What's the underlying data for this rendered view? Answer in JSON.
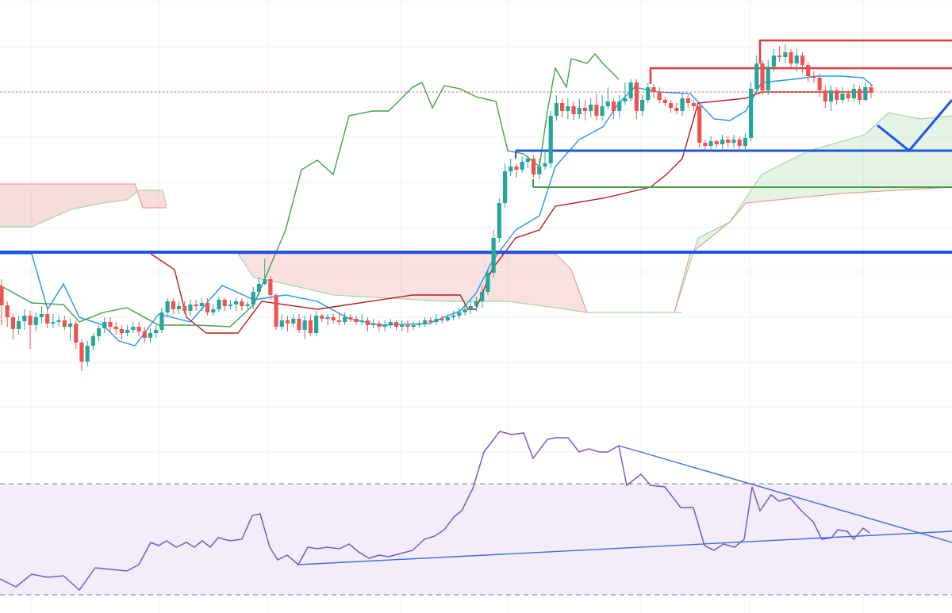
{
  "chart_data": [
    {
      "type": "candlestick",
      "panel": "price",
      "colors": {
        "up": "#26a69a",
        "down": "#ef5350",
        "conversion_line": "#2196f3",
        "base_line": "#b71c1c",
        "lagging_span": "#43a047",
        "cloud_bull": "#a5d6a7",
        "cloud_bear": "#ef9a9a",
        "horizontal_blue": "#1e55e6",
        "horizontal_green": "#43a047",
        "box_red": "#e53935",
        "price_line": "#ef5350"
      },
      "grid": true,
      "candles": [
        [
          361,
          385,
          352,
          410
        ],
        [
          385,
          400,
          380,
          412
        ],
        [
          400,
          415,
          396,
          428
        ],
        [
          415,
          405,
          398,
          422
        ],
        [
          405,
          398,
          390,
          416
        ],
        [
          398,
          410,
          392,
          440
        ],
        [
          410,
          400,
          394,
          418
        ],
        [
          400,
          396,
          386,
          408
        ],
        [
          396,
          408,
          390,
          414
        ],
        [
          408,
          406,
          396,
          414
        ],
        [
          406,
          404,
          398,
          412
        ],
        [
          404,
          412,
          398,
          416
        ],
        [
          412,
          408,
          402,
          430
        ],
        [
          408,
          432,
          404,
          440
        ],
        [
          432,
          456,
          428,
          468
        ],
        [
          456,
          436,
          430,
          462
        ],
        [
          436,
          424,
          420,
          442
        ],
        [
          424,
          414,
          410,
          430
        ],
        [
          414,
          406,
          400,
          420
        ],
        [
          406,
          412,
          400,
          418
        ],
        [
          412,
          415,
          406,
          422
        ],
        [
          415,
          420,
          410,
          428
        ],
        [
          420,
          416,
          410,
          424
        ],
        [
          416,
          412,
          406,
          420
        ],
        [
          412,
          418,
          406,
          424
        ],
        [
          418,
          426,
          412,
          432
        ],
        [
          426,
          420,
          414,
          432
        ],
        [
          420,
          416,
          410,
          426
        ],
        [
          416,
          394,
          388,
          420
        ],
        [
          394,
          380,
          376,
          400
        ],
        [
          380,
          390,
          376,
          396
        ],
        [
          390,
          386,
          380,
          396
        ],
        [
          386,
          392,
          380,
          396
        ],
        [
          392,
          384,
          378,
          398
        ],
        [
          384,
          386,
          378,
          392
        ],
        [
          386,
          382,
          376,
          392
        ],
        [
          382,
          394,
          376,
          398
        ],
        [
          394,
          390,
          384,
          398
        ],
        [
          390,
          378,
          374,
          394
        ],
        [
          378,
          386,
          376,
          392
        ],
        [
          386,
          384,
          378,
          390
        ],
        [
          384,
          380,
          376,
          392
        ],
        [
          380,
          386,
          376,
          392
        ],
        [
          386,
          384,
          380,
          390
        ],
        [
          384,
          368,
          362,
          390
        ],
        [
          368,
          358,
          350,
          372
        ],
        [
          358,
          352,
          326,
          360
        ],
        [
          352,
          372,
          348,
          378
        ],
        [
          372,
          412,
          370,
          416
        ],
        [
          412,
          404,
          396,
          416
        ],
        [
          404,
          408,
          398,
          418
        ],
        [
          408,
          402,
          396,
          412
        ],
        [
          402,
          416,
          396,
          420
        ],
        [
          416,
          404,
          398,
          428
        ],
        [
          404,
          420,
          396,
          424
        ],
        [
          420,
          398,
          392,
          424
        ],
        [
          398,
          402,
          396,
          406
        ],
        [
          402,
          400,
          396,
          410
        ],
        [
          400,
          404,
          396,
          408
        ],
        [
          404,
          406,
          396,
          410
        ],
        [
          406,
          400,
          394,
          410
        ],
        [
          400,
          402,
          396,
          406
        ],
        [
          402,
          406,
          398,
          410
        ],
        [
          406,
          404,
          396,
          410
        ],
        [
          404,
          410,
          400,
          418
        ],
        [
          410,
          408,
          402,
          414
        ],
        [
          408,
          412,
          404,
          418
        ],
        [
          412,
          410,
          404,
          418
        ],
        [
          410,
          406,
          402,
          414
        ],
        [
          406,
          412,
          404,
          416
        ],
        [
          412,
          410,
          404,
          418
        ],
        [
          410,
          412,
          404,
          420
        ],
        [
          412,
          410,
          406,
          416
        ],
        [
          410,
          408,
          404,
          414
        ],
        [
          408,
          404,
          400,
          412
        ],
        [
          404,
          406,
          400,
          410
        ],
        [
          406,
          402,
          396,
          410
        ],
        [
          402,
          404,
          398,
          408
        ],
        [
          404,
          400,
          396,
          406
        ],
        [
          400,
          398,
          392,
          404
        ],
        [
          398,
          394,
          388,
          402
        ],
        [
          394,
          390,
          384,
          398
        ],
        [
          390,
          386,
          380,
          396
        ],
        [
          386,
          380,
          374,
          392
        ],
        [
          380,
          368,
          360,
          388
        ],
        [
          368,
          344,
          340,
          372
        ],
        [
          344,
          300,
          290,
          350
        ],
        [
          300,
          256,
          250,
          306
        ],
        [
          256,
          216,
          206,
          262
        ],
        [
          216,
          210,
          200,
          222
        ],
        [
          210,
          214,
          206,
          224
        ],
        [
          214,
          204,
          198,
          218
        ],
        [
          204,
          200,
          196,
          212
        ],
        [
          200,
          220,
          196,
          224
        ],
        [
          220,
          210,
          200,
          226
        ],
        [
          210,
          206,
          190,
          214
        ],
        [
          206,
          146,
          140,
          212
        ],
        [
          146,
          130,
          120,
          152
        ],
        [
          130,
          140,
          124,
          148
        ],
        [
          140,
          134,
          124,
          150
        ],
        [
          134,
          144,
          128,
          152
        ],
        [
          144,
          136,
          124,
          150
        ],
        [
          136,
          140,
          126,
          152
        ],
        [
          140,
          132,
          124,
          148
        ],
        [
          132,
          146,
          118,
          152
        ],
        [
          146,
          134,
          120,
          152
        ],
        [
          134,
          128,
          110,
          138
        ],
        [
          128,
          140,
          124,
          150
        ],
        [
          140,
          128,
          120,
          148
        ],
        [
          128,
          124,
          104,
          132
        ],
        [
          124,
          104,
          100,
          128
        ],
        [
          104,
          140,
          100,
          150
        ],
        [
          140,
          126,
          120,
          146
        ],
        [
          126,
          110,
          104,
          130
        ],
        [
          110,
          116,
          106,
          124
        ],
        [
          116,
          126,
          110,
          130
        ],
        [
          126,
          130,
          122,
          134
        ],
        [
          130,
          136,
          126,
          142
        ],
        [
          136,
          140,
          130,
          144
        ],
        [
          140,
          124,
          118,
          146
        ],
        [
          124,
          130,
          120,
          136
        ],
        [
          130,
          134,
          126,
          140
        ],
        [
          134,
          180,
          130,
          186
        ],
        [
          180,
          184,
          176,
          190
        ],
        [
          184,
          178,
          172,
          188
        ],
        [
          178,
          182,
          176,
          186
        ],
        [
          182,
          176,
          170,
          188
        ],
        [
          176,
          180,
          172,
          186
        ],
        [
          180,
          176,
          170,
          186
        ],
        [
          176,
          184,
          172,
          190
        ],
        [
          184,
          174,
          168,
          188
        ],
        [
          174,
          112,
          104,
          178
        ],
        [
          112,
          80,
          70,
          116
        ],
        [
          80,
          114,
          76,
          120
        ],
        [
          114,
          84,
          76,
          120
        ],
        [
          84,
          70,
          62,
          90
        ],
        [
          70,
          72,
          58,
          78
        ],
        [
          72,
          66,
          56,
          80
        ],
        [
          66,
          80,
          62,
          86
        ],
        [
          80,
          70,
          62,
          90
        ],
        [
          70,
          82,
          66,
          92
        ],
        [
          82,
          96,
          78,
          104
        ],
        [
          96,
          98,
          90,
          104
        ],
        [
          98,
          114,
          92,
          122
        ],
        [
          114,
          128,
          108,
          136
        ],
        [
          128,
          114,
          108,
          140
        ],
        [
          114,
          126,
          110,
          132
        ],
        [
          126,
          118,
          110,
          130
        ],
        [
          118,
          124,
          114,
          128
        ],
        [
          124,
          112,
          106,
          128
        ],
        [
          112,
          126,
          108,
          132
        ],
        [
          126,
          110,
          104,
          128
        ],
        [
          110,
          116,
          106,
          124
        ]
      ],
      "horizontal_levels": [
        {
          "name": "support-blue-1",
          "price": 318
        },
        {
          "name": "support-blue-2",
          "price": 190
        },
        {
          "name": "support-green",
          "price": 236
        },
        {
          "name": "resistance-red-1",
          "price": 86
        },
        {
          "name": "resistance-red-2",
          "price": 51
        },
        {
          "name": "last-price",
          "price": 116
        }
      ]
    },
    {
      "type": "line",
      "panel": "rsi",
      "overbought": 610,
      "oversold": 750,
      "values": [
        [
          0,
          730
        ],
        [
          20,
          740
        ],
        [
          40,
          724
        ],
        [
          60,
          728
        ],
        [
          80,
          726
        ],
        [
          100,
          744
        ],
        [
          120,
          716
        ],
        [
          140,
          718
        ],
        [
          160,
          720
        ],
        [
          175,
          712
        ],
        [
          190,
          684
        ],
        [
          200,
          688
        ],
        [
          210,
          682
        ],
        [
          222,
          690
        ],
        [
          235,
          684
        ],
        [
          245,
          690
        ],
        [
          255,
          682
        ],
        [
          265,
          690
        ],
        [
          275,
          678
        ],
        [
          290,
          682
        ],
        [
          305,
          680
        ],
        [
          318,
          650
        ],
        [
          328,
          648
        ],
        [
          340,
          690
        ],
        [
          350,
          706
        ],
        [
          362,
          700
        ],
        [
          376,
          712
        ],
        [
          388,
          690
        ],
        [
          400,
          692
        ],
        [
          412,
          690
        ],
        [
          428,
          692
        ],
        [
          440,
          686
        ],
        [
          452,
          696
        ],
        [
          465,
          704
        ],
        [
          478,
          700
        ],
        [
          490,
          702
        ],
        [
          505,
          698
        ],
        [
          520,
          694
        ],
        [
          535,
          680
        ],
        [
          548,
          676
        ],
        [
          560,
          668
        ],
        [
          572,
          652
        ],
        [
          582,
          644
        ],
        [
          596,
          616
        ],
        [
          610,
          570
        ],
        [
          630,
          544
        ],
        [
          645,
          548
        ],
        [
          660,
          546
        ],
        [
          672,
          578
        ],
        [
          690,
          554
        ],
        [
          700,
          552
        ],
        [
          716,
          552
        ],
        [
          730,
          570
        ],
        [
          742,
          566
        ],
        [
          756,
          570
        ],
        [
          766,
          570
        ],
        [
          780,
          562
        ],
        [
          790,
          612
        ],
        [
          808,
          598
        ],
        [
          820,
          612
        ],
        [
          838,
          614
        ],
        [
          858,
          640
        ],
        [
          874,
          640
        ],
        [
          888,
          688
        ],
        [
          900,
          694
        ],
        [
          912,
          686
        ],
        [
          926,
          690
        ],
        [
          938,
          680
        ],
        [
          948,
          614
        ],
        [
          958,
          644
        ],
        [
          972,
          624
        ],
        [
          982,
          632
        ],
        [
          996,
          628
        ],
        [
          1010,
          644
        ],
        [
          1025,
          658
        ],
        [
          1036,
          680
        ],
        [
          1048,
          678
        ],
        [
          1056,
          668
        ],
        [
          1068,
          670
        ],
        [
          1076,
          680
        ],
        [
          1088,
          666
        ],
        [
          1096,
          672
        ]
      ],
      "trendlines": [
        {
          "name": "rsi-resistance-trend",
          "from": [
            780,
            562
          ],
          "to": [
            1200,
            684
          ]
        },
        {
          "name": "rsi-support-trend",
          "from": [
            376,
            712
          ],
          "to": [
            1200,
            670
          ]
        }
      ]
    }
  ]
}
